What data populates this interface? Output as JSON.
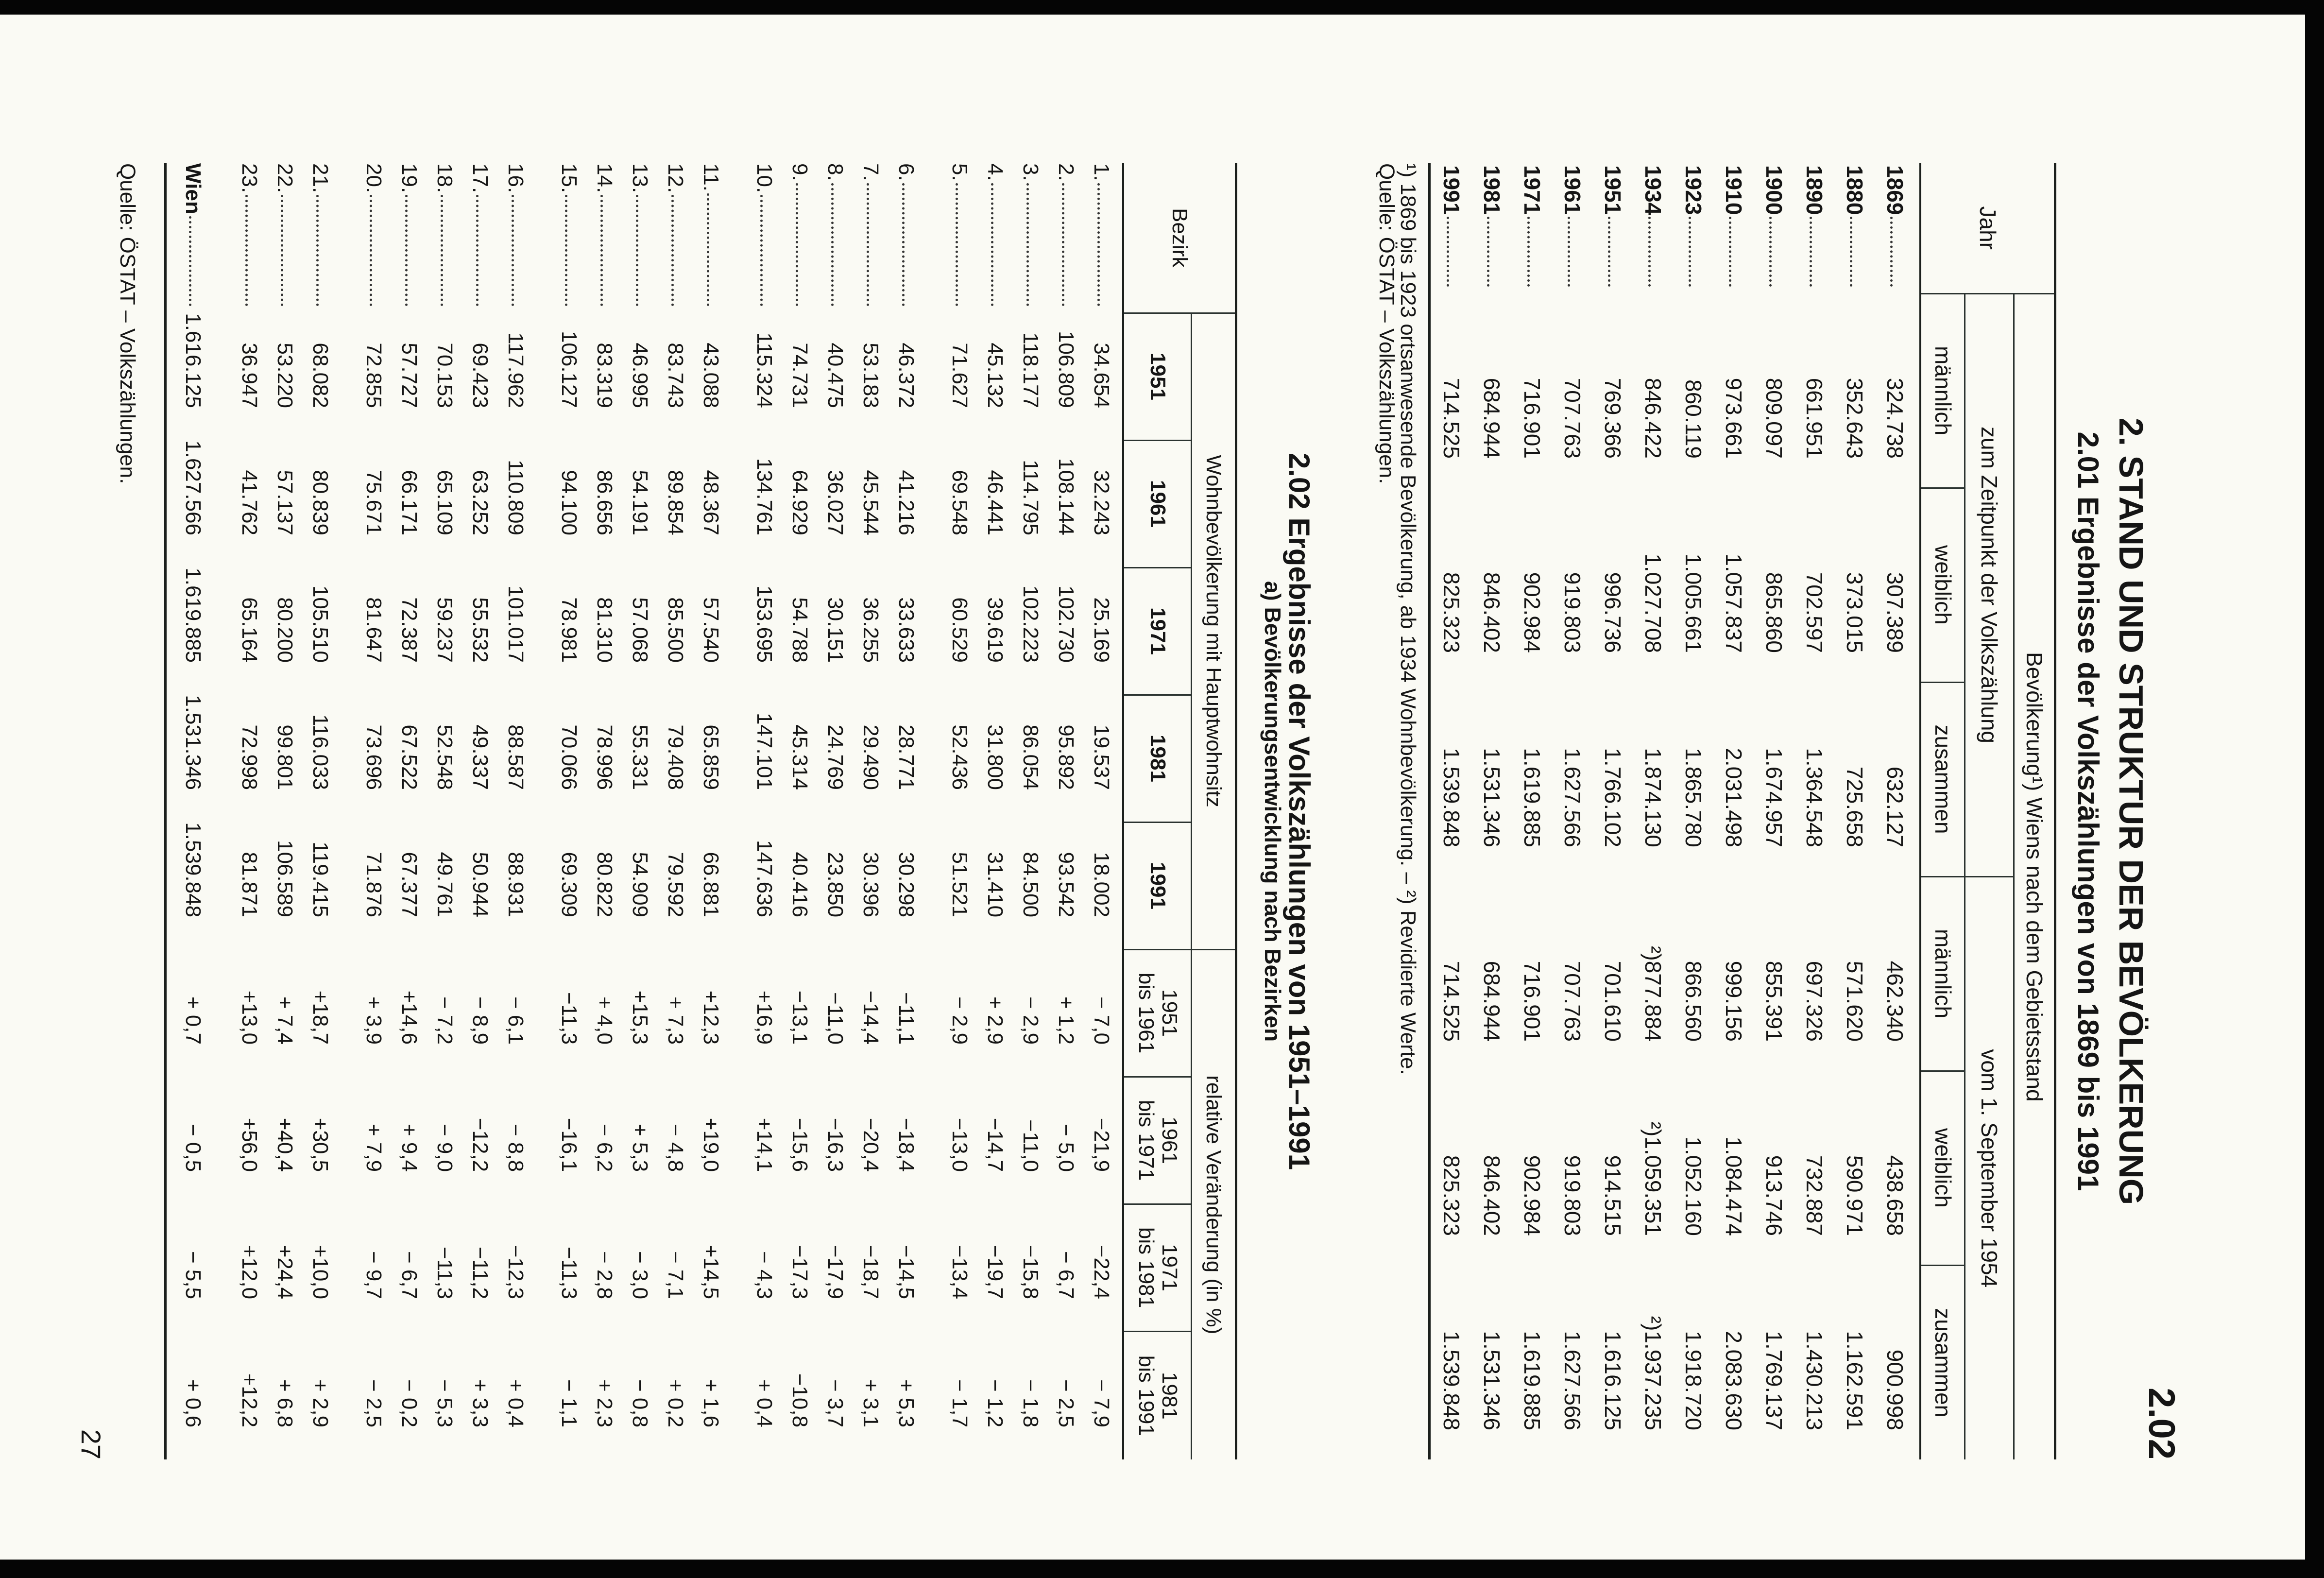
{
  "page": {
    "section_mark": "2.02",
    "title": "2. STAND UND STRUKTUR DER BEVÖLKERUNG",
    "page_number": "27"
  },
  "table_201": {
    "title": "2.01 Ergebnisse der Volkszählungen von 1869 bis 1991",
    "header": {
      "jahr": "Jahr",
      "group": "Bevölkerung¹) Wiens nach dem Gebietsstand",
      "sub_left": "zum Zeitpunkt der Volkszählung",
      "sub_right": "vom 1. September 1954",
      "columns": [
        "männlich",
        "weiblich",
        "zusammen",
        "männlich",
        "weiblich",
        "zusammen"
      ]
    },
    "rows": [
      {
        "year": "1869",
        "values": [
          "324.738",
          "307.389",
          "632.127",
          "462.340",
          "438.658",
          "900.998"
        ]
      },
      {
        "year": "1880",
        "values": [
          "352.643",
          "373.015",
          "725.658",
          "571.620",
          "590.971",
          "1.162.591"
        ]
      },
      {
        "year": "1890",
        "values": [
          "661.951",
          "702.597",
          "1.364.548",
          "697.326",
          "732.887",
          "1.430.213"
        ]
      },
      {
        "year": "1900",
        "values": [
          "809.097",
          "865.860",
          "1.674.957",
          "855.391",
          "913.746",
          "1.769.137"
        ]
      },
      {
        "year": "1910",
        "values": [
          "973.661",
          "1.057.837",
          "2.031.498",
          "999.156",
          "1.084.474",
          "2.083.630"
        ]
      },
      {
        "year": "1923",
        "values": [
          "860.119",
          "1.005.661",
          "1.865.780",
          "866.560",
          "1.052.160",
          "1.918.720"
        ]
      },
      {
        "year": "1934",
        "values": [
          "846.422",
          "1.027.708",
          "1.874.130",
          "²)877.884",
          "²)1.059.351",
          "²)1.937.235"
        ]
      },
      {
        "year": "1951",
        "values": [
          "769.366",
          "996.736",
          "1.766.102",
          "701.610",
          "914.515",
          "1.616.125"
        ]
      },
      {
        "year": "1961",
        "values": [
          "707.763",
          "919.803",
          "1.627.566",
          "707.763",
          "919.803",
          "1.627.566"
        ]
      },
      {
        "year": "1971",
        "values": [
          "716.901",
          "902.984",
          "1.619.885",
          "716.901",
          "902.984",
          "1.619.885"
        ]
      },
      {
        "year": "1981",
        "values": [
          "684.944",
          "846.402",
          "1.531.346",
          "684.944",
          "846.402",
          "1.531.346"
        ]
      },
      {
        "year": "1991",
        "values": [
          "714.525",
          "825.323",
          "1.539.848",
          "714.525",
          "825.323",
          "1.539.848"
        ]
      }
    ],
    "footnotes": [
      "¹) 1869 bis 1923 ortsanwesende Bevölkerung, ab 1934 Wohnbevölkerung. – ²) Revidierte Werte.",
      "Quelle: ÖSTAT – Volkszählungen."
    ]
  },
  "table_202": {
    "title": "2.02 Ergebnisse der Volkszählungen von 1951–1991",
    "subtitle": "a) Bevölkerungsentwicklung nach Bezirken",
    "header": {
      "bezirk": "Bezirk",
      "group_population": "Wohnbevölkerung mit Hauptwohnsitz",
      "group_change": "relative Veränderung (in %)",
      "years": [
        "1951",
        "1961",
        "1971",
        "1981",
        "1991"
      ],
      "periods": [
        {
          "from": "1951",
          "to": "bis 1961"
        },
        {
          "from": "1961",
          "to": "bis 1971"
        },
        {
          "from": "1971",
          "to": "bis 1981"
        },
        {
          "from": "1981",
          "to": "bis 1991"
        }
      ]
    },
    "groups": [
      [
        {
          "bezirk": "1.",
          "values": [
            "34.654",
            "32.243",
            "25.169",
            "19.537",
            "18.002",
            "− 7,0",
            "−21,9",
            "−22,4",
            "− 7,9"
          ]
        },
        {
          "bezirk": "2.",
          "values": [
            "106.809",
            "108.144",
            "102.730",
            "95.892",
            "93.542",
            "+ 1,2",
            "− 5,0",
            "− 6,7",
            "− 2,5"
          ]
        },
        {
          "bezirk": "3.",
          "values": [
            "118.177",
            "114.795",
            "102.223",
            "86.054",
            "84.500",
            "− 2,9",
            "−11,0",
            "−15,8",
            "− 1,8"
          ]
        },
        {
          "bezirk": "4.",
          "values": [
            "45.132",
            "46.441",
            "39.619",
            "31.800",
            "31.410",
            "+ 2,9",
            "−14,7",
            "−19,7",
            "− 1,2"
          ]
        },
        {
          "bezirk": "5.",
          "values": [
            "71.627",
            "69.548",
            "60.529",
            "52.436",
            "51.521",
            "− 2,9",
            "−13,0",
            "−13,4",
            "− 1,7"
          ]
        }
      ],
      [
        {
          "bezirk": "6.",
          "values": [
            "46.372",
            "41.216",
            "33.633",
            "28.771",
            "30.298",
            "−11,1",
            "−18,4",
            "−14,5",
            "+ 5,3"
          ]
        },
        {
          "bezirk": "7.",
          "values": [
            "53.183",
            "45.544",
            "36.255",
            "29.490",
            "30.396",
            "−14,4",
            "−20,4",
            "−18,7",
            "+ 3,1"
          ]
        },
        {
          "bezirk": "8.",
          "values": [
            "40.475",
            "36.027",
            "30.151",
            "24.769",
            "23.850",
            "−11,0",
            "−16,3",
            "−17,9",
            "− 3,7"
          ]
        },
        {
          "bezirk": "9.",
          "values": [
            "74.731",
            "64.929",
            "54.788",
            "45.314",
            "40.416",
            "−13,1",
            "−15,6",
            "−17,3",
            "−10,8"
          ]
        },
        {
          "bezirk": "10.",
          "values": [
            "115.324",
            "134.761",
            "153.695",
            "147.101",
            "147.636",
            "+16,9",
            "+14,1",
            "− 4,3",
            "+ 0,4"
          ]
        }
      ],
      [
        {
          "bezirk": "11.",
          "values": [
            "43.088",
            "48.367",
            "57.540",
            "65.859",
            "66.881",
            "+12,3",
            "+19,0",
            "+14,5",
            "+ 1,6"
          ]
        },
        {
          "bezirk": "12.",
          "values": [
            "83.743",
            "89.854",
            "85.500",
            "79.408",
            "79.592",
            "+ 7,3",
            "− 4,8",
            "− 7,1",
            "+ 0,2"
          ]
        },
        {
          "bezirk": "13.",
          "values": [
            "46.995",
            "54.191",
            "57.068",
            "55.331",
            "54.909",
            "+15,3",
            "+ 5,3",
            "− 3,0",
            "− 0,8"
          ]
        },
        {
          "bezirk": "14.",
          "values": [
            "83.319",
            "86.656",
            "81.310",
            "78.996",
            "80.822",
            "+ 4,0",
            "− 6,2",
            "− 2,8",
            "+ 2,3"
          ]
        },
        {
          "bezirk": "15.",
          "values": [
            "106.127",
            "94.100",
            "78.981",
            "70.066",
            "69.309",
            "−11,3",
            "−16,1",
            "−11,3",
            "− 1,1"
          ]
        }
      ],
      [
        {
          "bezirk": "16.",
          "values": [
            "117.962",
            "110.809",
            "101.017",
            "88.587",
            "88.931",
            "− 6,1",
            "− 8,8",
            "−12,3",
            "+ 0,4"
          ]
        },
        {
          "bezirk": "17.",
          "values": [
            "69.423",
            "63.252",
            "55.532",
            "49.337",
            "50.944",
            "− 8,9",
            "−12,2",
            "−11,2",
            "+ 3,3"
          ]
        },
        {
          "bezirk": "18.",
          "values": [
            "70.153",
            "65.109",
            "59.237",
            "52.548",
            "49.761",
            "− 7,2",
            "− 9,0",
            "−11,3",
            "− 5,3"
          ]
        },
        {
          "bezirk": "19.",
          "values": [
            "57.727",
            "66.171",
            "72.387",
            "67.522",
            "67.377",
            "+14,6",
            "+ 9,4",
            "− 6,7",
            "− 0,2"
          ]
        },
        {
          "bezirk": "20.",
          "values": [
            "72.855",
            "75.671",
            "81.647",
            "73.696",
            "71.876",
            "+ 3,9",
            "+ 7,9",
            "− 9,7",
            "− 2,5"
          ]
        }
      ],
      [
        {
          "bezirk": "21.",
          "values": [
            "68.082",
            "80.839",
            "105.510",
            "116.033",
            "119.415",
            "+18,7",
            "+30,5",
            "+10,0",
            "+ 2,9"
          ]
        },
        {
          "bezirk": "22.",
          "values": [
            "53.220",
            "57.137",
            "80.200",
            "99.801",
            "106.589",
            "+ 7,4",
            "+40,4",
            "+24,4",
            "+ 6,8"
          ]
        },
        {
          "bezirk": "23.",
          "values": [
            "36.947",
            "41.762",
            "65.164",
            "72.998",
            "81.871",
            "+13,0",
            "+56,0",
            "+12,0",
            "+12,2"
          ]
        }
      ]
    ],
    "total": {
      "bezirk": "Wien",
      "values": [
        "1.616.125",
        "1.627.566",
        "1.619.885",
        "1.531.346",
        "1.539.848",
        "+ 0,7",
        "− 0,5",
        "− 5,5",
        "+ 0,6"
      ]
    },
    "source": "Quelle: ÖSTAT – Volkszählungen."
  }
}
